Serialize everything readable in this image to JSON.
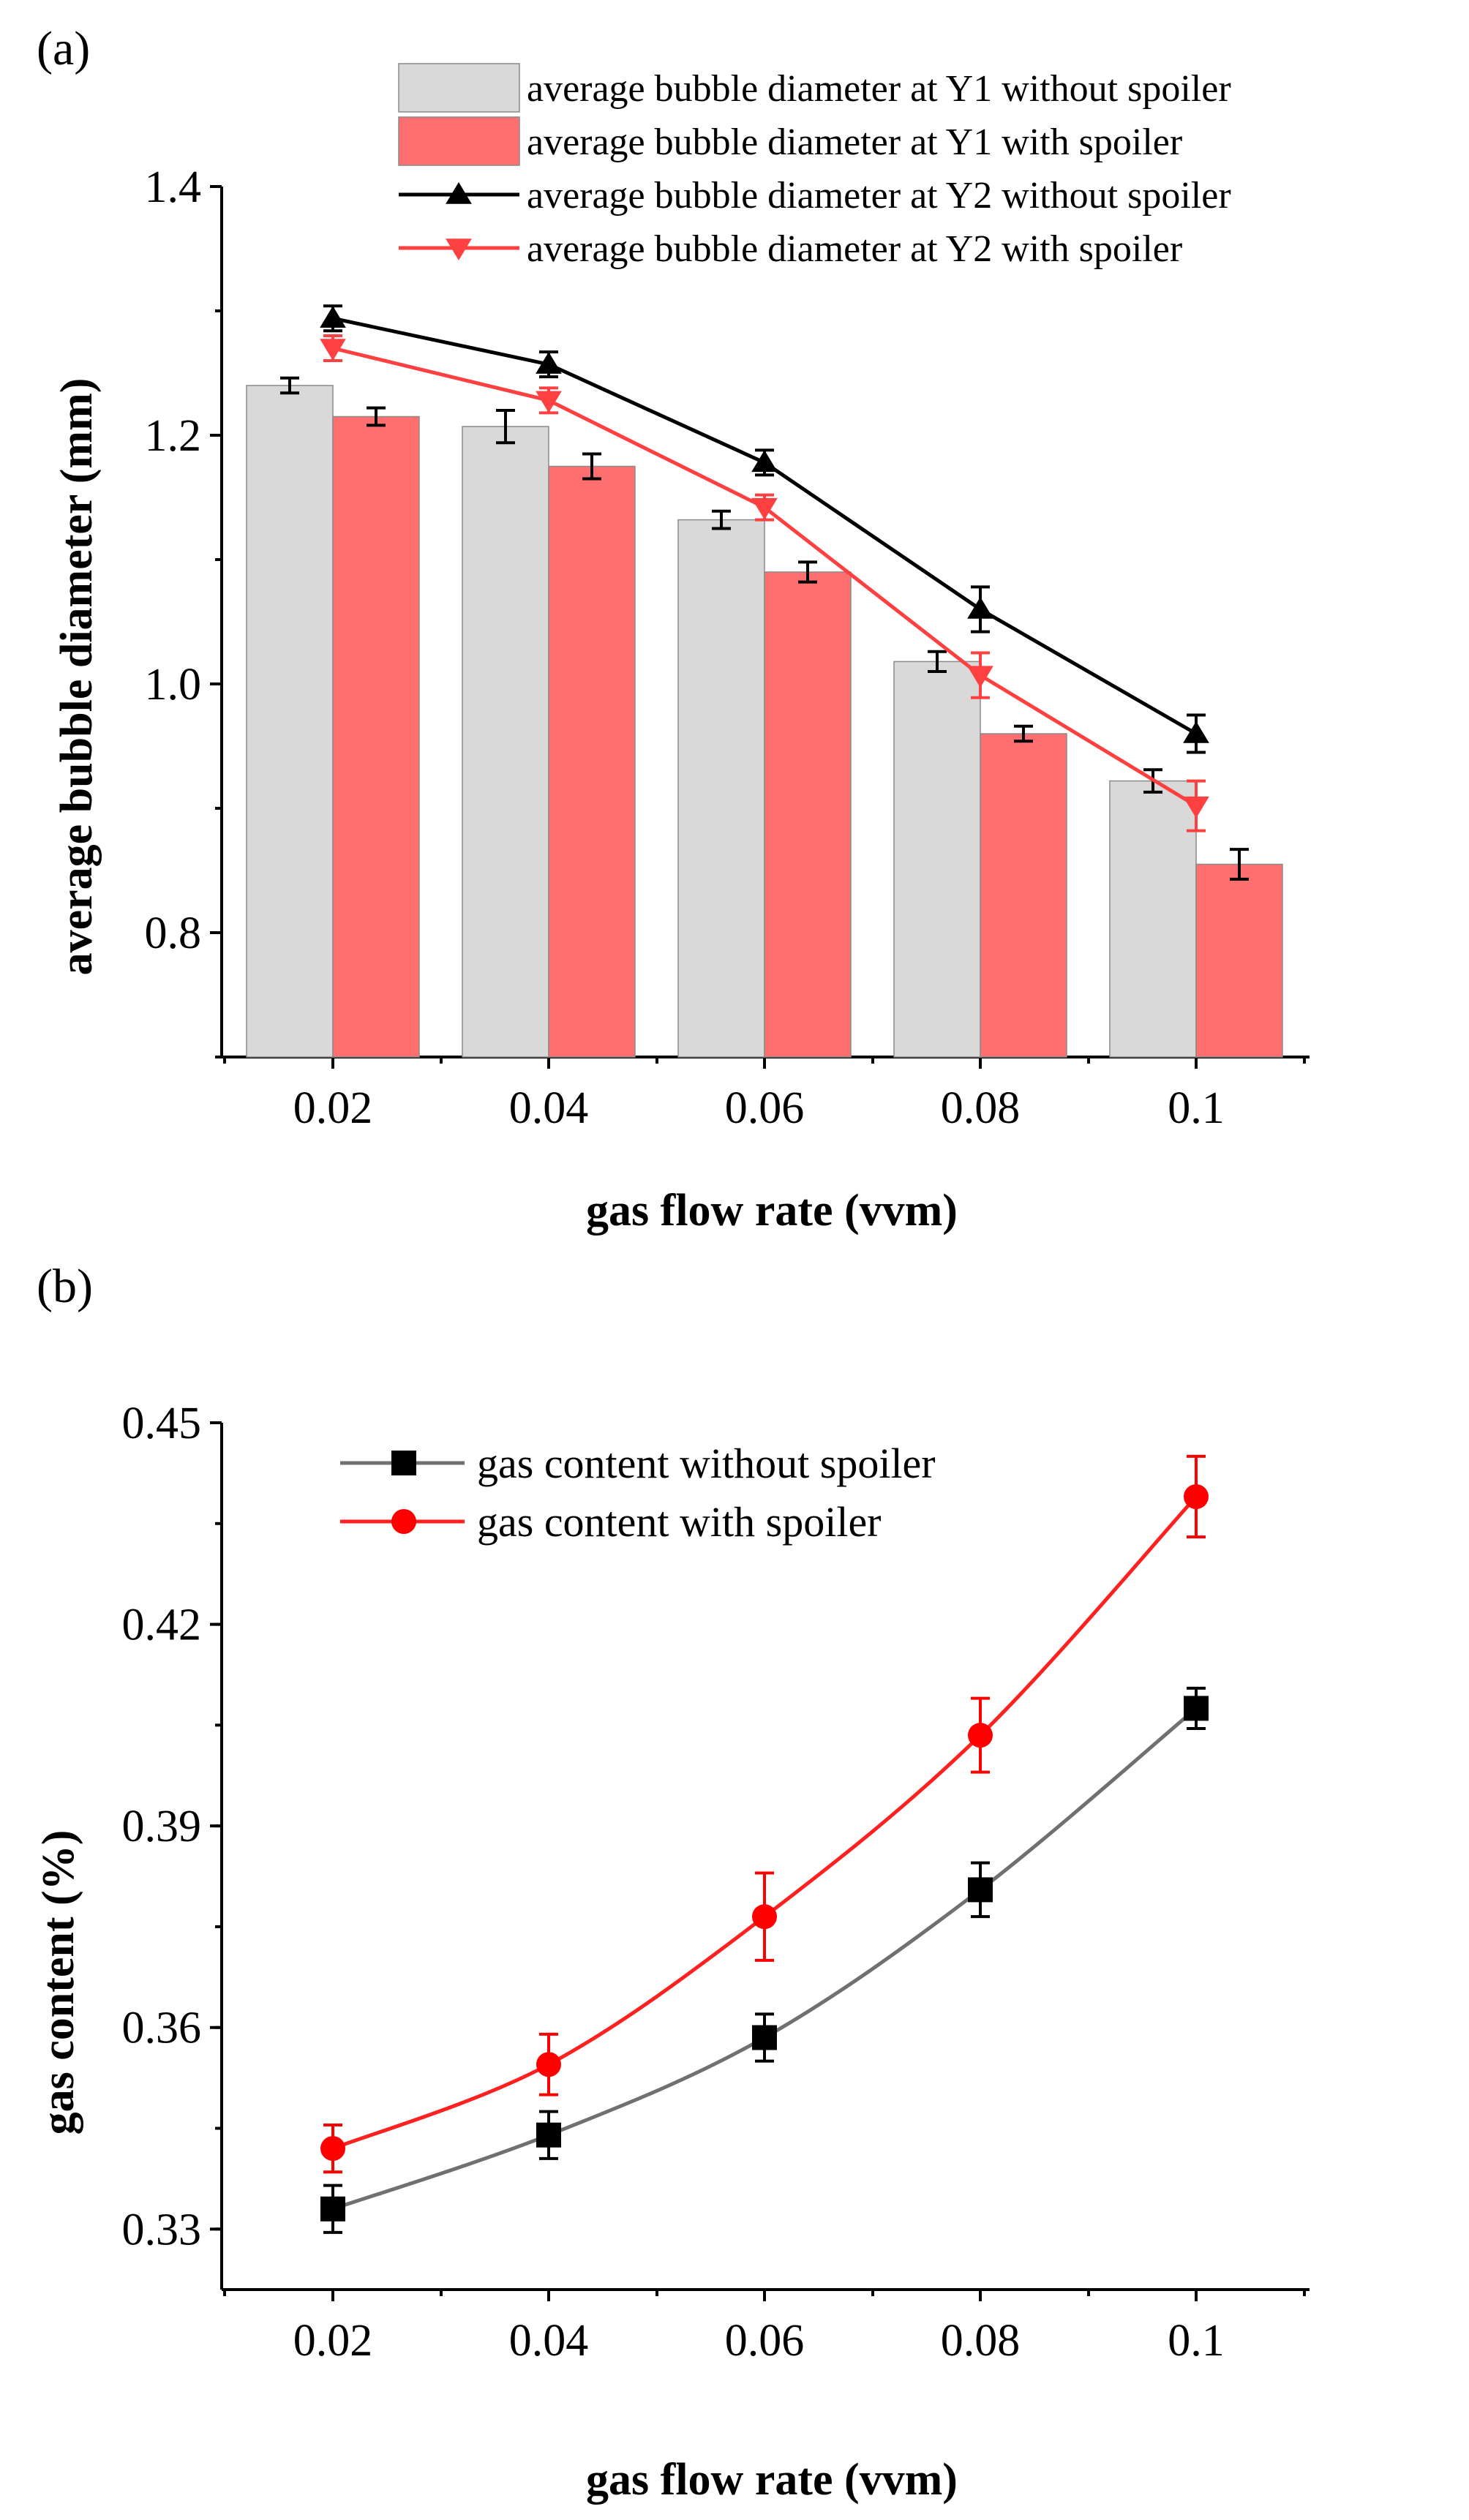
{
  "chart_data": [
    {
      "type": "bar",
      "panel_label": "(a)",
      "categories": [
        "0.02",
        "0.04",
        "0.06",
        "0.08",
        "0.1"
      ],
      "xlabel": "gas flow rate (vvm)",
      "ylabel": "average bubble diameter (mm)",
      "ylim": [
        0.7,
        1.4
      ],
      "yticks": [
        0.8,
        1.0,
        1.2,
        1.4
      ],
      "ytick_labels": [
        "0.8",
        "1.0",
        "1.2",
        "1.4"
      ],
      "series": [
        {
          "name": "average bubble diameter at Y1 without spoiler",
          "kind": "bar",
          "color": "#d9d9d9",
          "values": [
            1.24,
            1.207,
            1.132,
            1.018,
            0.922
          ],
          "errors": [
            0.006,
            0.013,
            0.007,
            0.008,
            0.009
          ]
        },
        {
          "name": "average bubble diameter at Y1 with spoiler",
          "kind": "bar",
          "color": "#ff6f6f",
          "values": [
            1.215,
            1.175,
            1.09,
            0.96,
            0.855
          ],
          "errors": [
            0.007,
            0.01,
            0.008,
            0.006,
            0.012
          ]
        },
        {
          "name": "average bubble diameter at Y2 without spoiler",
          "kind": "line",
          "marker": "triangle-up",
          "color": "#000000",
          "values": [
            1.294,
            1.257,
            1.178,
            1.06,
            0.96
          ],
          "errors": [
            0.01,
            0.01,
            0.01,
            0.018,
            0.015
          ]
        },
        {
          "name": "average bubble diameter at Y2 with spoiler",
          "kind": "line",
          "marker": "triangle-down",
          "color": "#ff4040",
          "values": [
            1.27,
            1.228,
            1.142,
            1.007,
            0.902
          ],
          "errors": [
            0.01,
            0.01,
            0.01,
            0.018,
            0.02
          ]
        }
      ],
      "legend_position": "top-right"
    },
    {
      "type": "line",
      "panel_label": "(b)",
      "categories": [
        "0.02",
        "0.04",
        "0.06",
        "0.08",
        "0.1"
      ],
      "xlabel": "gas flow rate (vvm)",
      "ylabel": "gas content (%)",
      "ylim": [
        0.321,
        0.45
      ],
      "yticks": [
        0.33,
        0.36,
        0.39,
        0.42,
        0.45
      ],
      "ytick_labels": [
        "0.33",
        "0.36",
        "0.39",
        "0.42",
        "0.45"
      ],
      "series": [
        {
          "name": "gas content without spoiler",
          "marker": "square",
          "color": "#000000",
          "line_color": "#707070",
          "values": [
            0.333,
            0.344,
            0.3585,
            0.3805,
            0.4075
          ],
          "errors": [
            0.0035,
            0.0035,
            0.0035,
            0.004,
            0.003
          ]
        },
        {
          "name": "gas content with spoiler",
          "marker": "circle",
          "color": "#ff0000",
          "line_color": "#ff2020",
          "values": [
            0.342,
            0.3545,
            0.3765,
            0.4035,
            0.439
          ],
          "errors": [
            0.0035,
            0.0045,
            0.0065,
            0.0055,
            0.006
          ]
        }
      ],
      "legend_position": "top-left"
    }
  ]
}
